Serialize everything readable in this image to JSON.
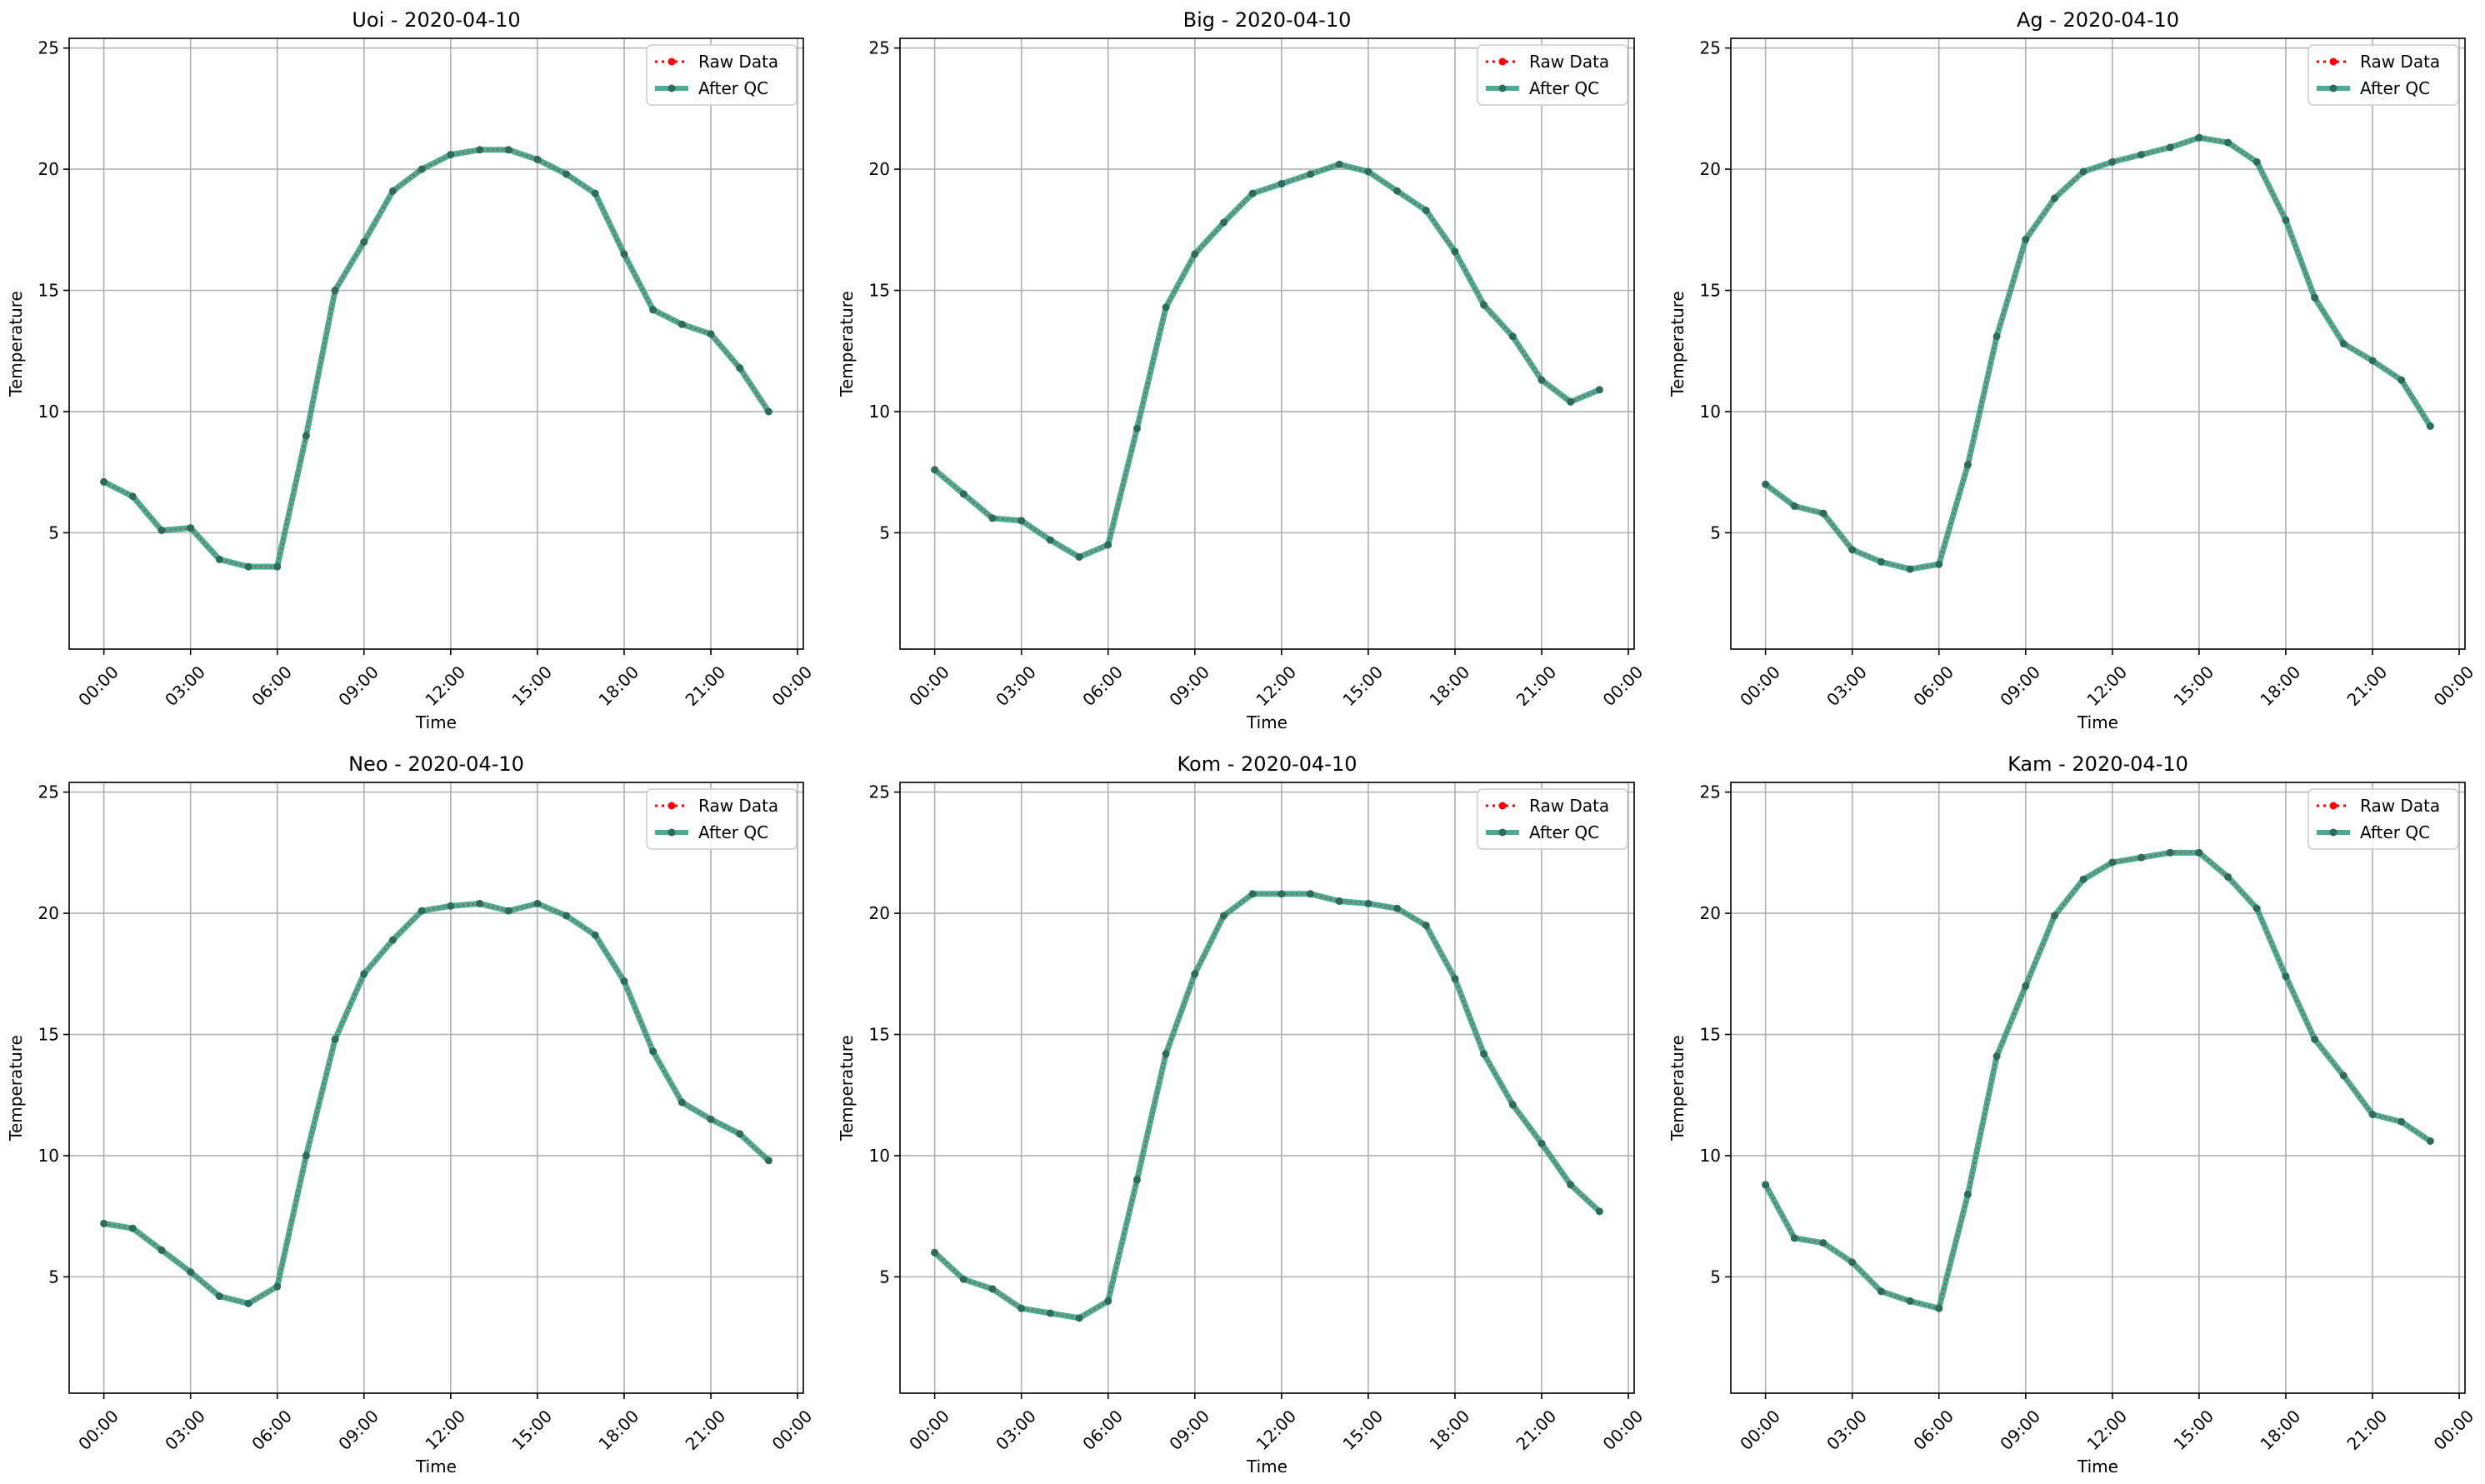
{
  "figure": {
    "background": "#ffffff"
  },
  "style": {
    "raw_color": "#ff0000",
    "qc_color": "#2a9d7f",
    "marker_color": "#2f6b5a",
    "grid_color": "#b0b0b0"
  },
  "legend_labels": {
    "raw": "Raw Data",
    "qc": "After QC"
  },
  "chart_data": [
    {
      "type": "line",
      "title": "Uoi - 2020-04-10",
      "xlabel": "Time",
      "ylabel": "Temperature",
      "x_hours": [
        0,
        1,
        2,
        3,
        4,
        5,
        6,
        7,
        8,
        9,
        10,
        11,
        12,
        13,
        14,
        15,
        16,
        17,
        18,
        19,
        20,
        21,
        22,
        23
      ],
      "xticks": [
        "00:00",
        "03:00",
        "06:00",
        "09:00",
        "12:00",
        "15:00",
        "18:00",
        "21:00",
        "00:00"
      ],
      "xtick_hours": [
        0,
        3,
        6,
        9,
        12,
        15,
        18,
        21,
        24
      ],
      "ylim": [
        0.2,
        25.4
      ],
      "yticks": [
        5,
        10,
        15,
        20,
        25
      ],
      "grid": true,
      "legend": "top-right",
      "series": [
        {
          "name": "Raw Data",
          "values": [
            7.1,
            6.5,
            5.1,
            5.2,
            3.9,
            3.6,
            3.6,
            9.0,
            15.0,
            17.0,
            19.1,
            20.0,
            20.6,
            20.8,
            20.8,
            20.4,
            19.8,
            19.0,
            16.5,
            14.2,
            13.6,
            13.2,
            11.8,
            10.0
          ]
        },
        {
          "name": "After QC",
          "values": [
            7.1,
            6.5,
            5.1,
            5.2,
            3.9,
            3.6,
            3.6,
            9.0,
            15.0,
            17.0,
            19.1,
            20.0,
            20.6,
            20.8,
            20.8,
            20.4,
            19.8,
            19.0,
            16.5,
            14.2,
            13.6,
            13.2,
            11.8,
            10.0
          ]
        }
      ]
    },
    {
      "type": "line",
      "title": "Big - 2020-04-10",
      "xlabel": "Time",
      "ylabel": "Temperature",
      "x_hours": [
        0,
        1,
        2,
        3,
        4,
        5,
        6,
        7,
        8,
        9,
        10,
        11,
        12,
        13,
        14,
        15,
        16,
        17,
        18,
        19,
        20,
        21,
        22,
        23
      ],
      "xticks": [
        "00:00",
        "03:00",
        "06:00",
        "09:00",
        "12:00",
        "15:00",
        "18:00",
        "21:00",
        "00:00"
      ],
      "xtick_hours": [
        0,
        3,
        6,
        9,
        12,
        15,
        18,
        21,
        24
      ],
      "ylim": [
        0.2,
        25.4
      ],
      "yticks": [
        5,
        10,
        15,
        20,
        25
      ],
      "grid": true,
      "legend": "top-right",
      "series": [
        {
          "name": "Raw Data",
          "values": [
            7.6,
            6.6,
            5.6,
            5.5,
            4.7,
            4.0,
            4.5,
            9.3,
            14.3,
            16.5,
            17.8,
            19.0,
            19.4,
            19.8,
            20.2,
            19.9,
            19.1,
            18.3,
            16.6,
            14.4,
            13.1,
            11.3,
            10.4,
            10.9
          ]
        },
        {
          "name": "After QC",
          "values": [
            7.6,
            6.6,
            5.6,
            5.5,
            4.7,
            4.0,
            4.5,
            9.3,
            14.3,
            16.5,
            17.8,
            19.0,
            19.4,
            19.8,
            20.2,
            19.9,
            19.1,
            18.3,
            16.6,
            14.4,
            13.1,
            11.3,
            10.4,
            10.9
          ]
        }
      ]
    },
    {
      "type": "line",
      "title": "Ag - 2020-04-10",
      "xlabel": "Time",
      "ylabel": "Temperature",
      "x_hours": [
        0,
        1,
        2,
        3,
        4,
        5,
        6,
        7,
        8,
        9,
        10,
        11,
        12,
        13,
        14,
        15,
        16,
        17,
        18,
        19,
        20,
        21,
        22,
        23
      ],
      "xticks": [
        "00:00",
        "03:00",
        "06:00",
        "09:00",
        "12:00",
        "15:00",
        "18:00",
        "21:00",
        "00:00"
      ],
      "xtick_hours": [
        0,
        3,
        6,
        9,
        12,
        15,
        18,
        21,
        24
      ],
      "ylim": [
        0.2,
        25.4
      ],
      "yticks": [
        5,
        10,
        15,
        20,
        25
      ],
      "grid": true,
      "legend": "top-right",
      "series": [
        {
          "name": "Raw Data",
          "values": [
            7.0,
            6.1,
            5.8,
            4.3,
            3.8,
            3.5,
            3.7,
            7.8,
            13.1,
            17.1,
            18.8,
            19.9,
            20.3,
            20.6,
            20.9,
            21.3,
            21.1,
            20.3,
            17.9,
            14.7,
            12.8,
            12.1,
            11.3,
            9.4
          ]
        },
        {
          "name": "After QC",
          "values": [
            7.0,
            6.1,
            5.8,
            4.3,
            3.8,
            3.5,
            3.7,
            7.8,
            13.1,
            17.1,
            18.8,
            19.9,
            20.3,
            20.6,
            20.9,
            21.3,
            21.1,
            20.3,
            17.9,
            14.7,
            12.8,
            12.1,
            11.3,
            9.4
          ]
        }
      ]
    },
    {
      "type": "line",
      "title": "Neo - 2020-04-10",
      "xlabel": "Time",
      "ylabel": "Temperature",
      "x_hours": [
        0,
        1,
        2,
        3,
        4,
        5,
        6,
        7,
        8,
        9,
        10,
        11,
        12,
        13,
        14,
        15,
        16,
        17,
        18,
        19,
        20,
        21,
        22,
        23
      ],
      "xticks": [
        "00:00",
        "03:00",
        "06:00",
        "09:00",
        "12:00",
        "15:00",
        "18:00",
        "21:00",
        "00:00"
      ],
      "xtick_hours": [
        0,
        3,
        6,
        9,
        12,
        15,
        18,
        21,
        24
      ],
      "ylim": [
        0.2,
        25.4
      ],
      "yticks": [
        5,
        10,
        15,
        20,
        25
      ],
      "grid": true,
      "legend": "top-right",
      "series": [
        {
          "name": "Raw Data",
          "values": [
            7.2,
            7.0,
            6.1,
            5.2,
            4.2,
            3.9,
            4.6,
            10.0,
            14.8,
            17.5,
            18.9,
            20.1,
            20.3,
            20.4,
            20.1,
            20.4,
            19.9,
            19.1,
            17.2,
            14.3,
            12.2,
            11.5,
            10.9,
            9.8
          ]
        },
        {
          "name": "After QC",
          "values": [
            7.2,
            7.0,
            6.1,
            5.2,
            4.2,
            3.9,
            4.6,
            10.0,
            14.8,
            17.5,
            18.9,
            20.1,
            20.3,
            20.4,
            20.1,
            20.4,
            19.9,
            19.1,
            17.2,
            14.3,
            12.2,
            11.5,
            10.9,
            9.8
          ]
        }
      ]
    },
    {
      "type": "line",
      "title": "Kom - 2020-04-10",
      "xlabel": "Time",
      "ylabel": "Temperature",
      "x_hours": [
        0,
        1,
        2,
        3,
        4,
        5,
        6,
        7,
        8,
        9,
        10,
        11,
        12,
        13,
        14,
        15,
        16,
        17,
        18,
        19,
        20,
        21,
        22,
        23
      ],
      "xticks": [
        "00:00",
        "03:00",
        "06:00",
        "09:00",
        "12:00",
        "15:00",
        "18:00",
        "21:00",
        "00:00"
      ],
      "xtick_hours": [
        0,
        3,
        6,
        9,
        12,
        15,
        18,
        21,
        24
      ],
      "ylim": [
        0.2,
        25.4
      ],
      "yticks": [
        5,
        10,
        15,
        20,
        25
      ],
      "grid": true,
      "legend": "top-right",
      "series": [
        {
          "name": "Raw Data",
          "values": [
            6.0,
            4.9,
            4.5,
            3.7,
            3.5,
            3.3,
            4.0,
            9.0,
            14.2,
            17.5,
            19.9,
            20.8,
            20.8,
            20.8,
            20.5,
            20.4,
            20.2,
            19.5,
            17.3,
            14.2,
            12.1,
            10.5,
            8.8,
            7.7
          ]
        },
        {
          "name": "After QC",
          "values": [
            6.0,
            4.9,
            4.5,
            3.7,
            3.5,
            3.3,
            4.0,
            9.0,
            14.2,
            17.5,
            19.9,
            20.8,
            20.8,
            20.8,
            20.5,
            20.4,
            20.2,
            19.5,
            17.3,
            14.2,
            12.1,
            10.5,
            8.8,
            7.7
          ]
        }
      ]
    },
    {
      "type": "line",
      "title": "Kam - 2020-04-10",
      "xlabel": "Time",
      "ylabel": "Temperature",
      "x_hours": [
        0,
        1,
        2,
        3,
        4,
        5,
        6,
        7,
        8,
        9,
        10,
        11,
        12,
        13,
        14,
        15,
        16,
        17,
        18,
        19,
        20,
        21,
        22,
        23
      ],
      "xticks": [
        "00:00",
        "03:00",
        "06:00",
        "09:00",
        "12:00",
        "15:00",
        "18:00",
        "21:00",
        "00:00"
      ],
      "xtick_hours": [
        0,
        3,
        6,
        9,
        12,
        15,
        18,
        21,
        24
      ],
      "ylim": [
        0.2,
        25.4
      ],
      "yticks": [
        5,
        10,
        15,
        20,
        25
      ],
      "grid": true,
      "legend": "top-right",
      "series": [
        {
          "name": "Raw Data",
          "values": [
            8.8,
            6.6,
            6.4,
            5.6,
            4.4,
            4.0,
            3.7,
            8.4,
            14.1,
            17.0,
            19.9,
            21.4,
            22.1,
            22.3,
            22.5,
            22.5,
            21.5,
            20.2,
            17.4,
            14.8,
            13.3,
            11.7,
            11.4,
            10.6
          ]
        },
        {
          "name": "After QC",
          "values": [
            8.8,
            6.6,
            6.4,
            5.6,
            4.4,
            4.0,
            3.7,
            8.4,
            14.1,
            17.0,
            19.9,
            21.4,
            22.1,
            22.3,
            22.5,
            22.5,
            21.5,
            20.2,
            17.4,
            14.8,
            13.3,
            11.7,
            11.4,
            10.6
          ]
        }
      ]
    }
  ]
}
